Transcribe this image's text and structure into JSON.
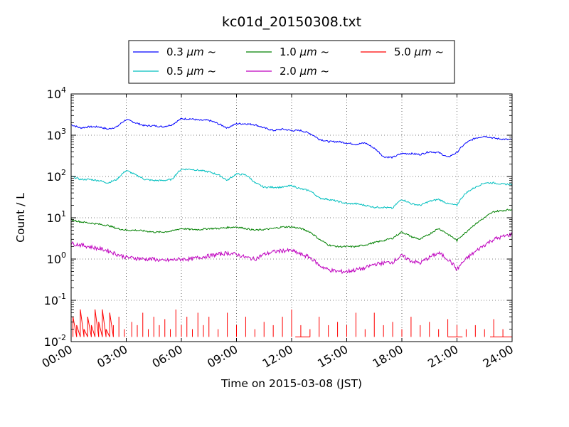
{
  "chart_data": {
    "type": "line",
    "title": "kc01d_20150308.txt",
    "xlabel": "Time on 2015-03-08 (JST)",
    "ylabel": "Count / L",
    "x_ticks": [
      "00:00",
      "03:00",
      "06:00",
      "09:00",
      "12:00",
      "15:00",
      "18:00",
      "21:00",
      "24:00"
    ],
    "xlim_hours": [
      0,
      24
    ],
    "y_scale": "log",
    "ylim": [
      0.01,
      10000
    ],
    "y_ticks": [
      {
        "base": "10",
        "exp": "-2"
      },
      {
        "base": "10",
        "exp": "-1"
      },
      {
        "base": "10",
        "exp": "0"
      },
      {
        "base": "10",
        "exp": "1"
      },
      {
        "base": "10",
        "exp": "2"
      },
      {
        "base": "10",
        "exp": "3"
      },
      {
        "base": "10",
        "exp": "4"
      }
    ],
    "grid": true,
    "legend_position": "top-center",
    "series": [
      {
        "name": "0.3 μm ~",
        "legend_size": "0.3",
        "legend_unit": "μm",
        "legend_suffix": "~",
        "color": "#0000ff",
        "x": [
          0,
          0.5,
          1,
          1.5,
          2,
          2.5,
          3,
          3.5,
          4,
          4.5,
          5,
          5.5,
          6,
          6.5,
          7,
          7.5,
          8,
          8.5,
          9,
          9.5,
          10,
          10.5,
          11,
          11.5,
          12,
          12.5,
          13,
          13.5,
          14,
          14.5,
          15,
          15.5,
          16,
          16.5,
          17,
          17.5,
          18,
          18.5,
          19,
          19.5,
          20,
          20.5,
          21,
          21.5,
          22,
          22.5,
          23,
          23.5,
          24
        ],
        "y": [
          1800,
          1500,
          1600,
          1600,
          1400,
          1600,
          2400,
          2000,
          1700,
          1700,
          1600,
          1800,
          2500,
          2500,
          2300,
          2300,
          1900,
          1500,
          1900,
          1900,
          1800,
          1500,
          1300,
          1400,
          1300,
          1300,
          1100,
          800,
          700,
          700,
          650,
          600,
          650,
          480,
          300,
          290,
          360,
          360,
          340,
          400,
          380,
          290,
          380,
          650,
          850,
          950,
          850,
          800,
          780
        ]
      },
      {
        "name": "0.5 μm ~",
        "legend_size": "0.5",
        "legend_unit": "μm",
        "legend_suffix": "~",
        "color": "#00bfbf",
        "x": [
          0,
          0.5,
          1,
          1.5,
          2,
          2.5,
          3,
          3.5,
          4,
          4.5,
          5,
          5.5,
          6,
          6.5,
          7,
          7.5,
          8,
          8.5,
          9,
          9.5,
          10,
          10.5,
          11,
          11.5,
          12,
          12.5,
          13,
          13.5,
          14,
          14.5,
          15,
          15.5,
          16,
          16.5,
          17,
          17.5,
          18,
          18.5,
          19,
          19.5,
          20,
          20.5,
          21,
          21.5,
          22,
          22.5,
          23,
          23.5,
          24
        ],
        "y": [
          100,
          85,
          85,
          80,
          70,
          85,
          140,
          110,
          85,
          80,
          80,
          85,
          150,
          150,
          140,
          130,
          110,
          80,
          115,
          110,
          70,
          55,
          55,
          55,
          60,
          50,
          45,
          30,
          28,
          25,
          22,
          22,
          20,
          18,
          18,
          17,
          28,
          22,
          20,
          25,
          28,
          22,
          20,
          40,
          55,
          70,
          70,
          65,
          65
        ]
      },
      {
        "name": "1.0 μm ~",
        "legend_size": "1.0",
        "legend_unit": "μm",
        "legend_suffix": "~",
        "color": "#008000",
        "x": [
          0,
          0.5,
          1,
          1.5,
          2,
          2.5,
          3,
          3.5,
          4,
          4.5,
          5,
          5.5,
          6,
          6.5,
          7,
          7.5,
          8,
          8.5,
          9,
          9.5,
          10,
          10.5,
          11,
          11.5,
          12,
          12.5,
          13,
          13.5,
          14,
          14.5,
          15,
          15.5,
          16,
          16.5,
          17,
          17.5,
          18,
          18.5,
          19,
          19.5,
          20,
          20.5,
          21,
          21.5,
          22,
          22.5,
          23,
          23.5,
          24
        ],
        "y": [
          9,
          8,
          7.5,
          7,
          6.5,
          5.5,
          5,
          5,
          4.8,
          4.5,
          4.5,
          4.8,
          5.5,
          5.2,
          5.2,
          5.5,
          5.5,
          5.8,
          6,
          5.5,
          5,
          5.2,
          5.5,
          6,
          6,
          5.5,
          4.5,
          3,
          2.2,
          2,
          2,
          2,
          2.2,
          2.5,
          2.8,
          3.2,
          4.5,
          3.5,
          3,
          4,
          5.5,
          4,
          2.8,
          4.5,
          7,
          10,
          14,
          15,
          16
        ]
      },
      {
        "name": "2.0 μm ~",
        "legend_size": "2.0",
        "legend_unit": "μm",
        "legend_suffix": "~",
        "color": "#bf00bf",
        "x": [
          0,
          0.5,
          1,
          1.5,
          2,
          2.5,
          3,
          3.5,
          4,
          4.5,
          5,
          5.5,
          6,
          6.5,
          7,
          7.5,
          8,
          8.5,
          9,
          9.5,
          10,
          10.5,
          11,
          11.5,
          12,
          12.5,
          13,
          13.5,
          14,
          14.5,
          15,
          15.5,
          16,
          16.5,
          17,
          17.5,
          18,
          18.5,
          19,
          19.5,
          20,
          20.5,
          21,
          21.5,
          22,
          22.5,
          23,
          23.5,
          24
        ],
        "y": [
          2.4,
          2.2,
          2,
          1.8,
          1.6,
          1.3,
          1.1,
          1.05,
          1,
          1,
          0.9,
          0.95,
          1,
          1,
          1.1,
          1.2,
          1.3,
          1.4,
          1.3,
          1.1,
          1,
          1.3,
          1.5,
          1.6,
          1.6,
          1.3,
          1.1,
          0.7,
          0.55,
          0.5,
          0.5,
          0.55,
          0.6,
          0.75,
          0.8,
          0.85,
          1.2,
          0.9,
          0.8,
          1.1,
          1.4,
          1,
          0.55,
          1,
          1.5,
          2.2,
          3,
          3.5,
          4
        ]
      },
      {
        "name": "5.0 μm ~",
        "legend_size": "5.0",
        "legend_unit": "μm",
        "legend_suffix": "~",
        "color": "#ff0000",
        "x": [
          0.1,
          0.3,
          0.5,
          0.7,
          0.9,
          1.1,
          1.3,
          1.5,
          1.7,
          1.9,
          2.1,
          2.3,
          2.6,
          2.9,
          3.3,
          3.6,
          3.9,
          4.2,
          4.5,
          4.8,
          5.1,
          5.4,
          5.7,
          6.0,
          6.3,
          6.6,
          6.9,
          7.2,
          7.5,
          8.0,
          8.5,
          9.0,
          9.5,
          10.0,
          10.5,
          11.0,
          11.5,
          12.0,
          12.5,
          13.0,
          13.5,
          14.0,
          14.5,
          15.0,
          15.5,
          16.0,
          16.5,
          17.0,
          17.5,
          18.0,
          18.5,
          19.0,
          19.5,
          20.0,
          20.5,
          21.0,
          21.5,
          22.0,
          22.5,
          23.0,
          23.5,
          24.0
        ],
        "y": [
          0.04,
          0.025,
          0.06,
          0.02,
          0.04,
          0.025,
          0.06,
          0.03,
          0.06,
          0.02,
          0.05,
          0.025,
          0.04,
          0.02,
          0.03,
          0.025,
          0.05,
          0.02,
          0.04,
          0.025,
          0.035,
          0.02,
          0.06,
          0.025,
          0.04,
          0.02,
          0.05,
          0.025,
          0.04,
          0.02,
          0.05,
          0.025,
          0.04,
          0.02,
          0.03,
          0.025,
          0.04,
          0.06,
          0.025,
          0.02,
          0.04,
          0.025,
          0.03,
          0.025,
          0.05,
          0.02,
          0.05,
          0.025,
          0.03,
          0.02,
          0.04,
          0.025,
          0.03,
          0.02,
          0.035,
          0.025,
          0.02,
          0.025,
          0.02,
          0.035,
          0.02,
          0.02
        ]
      }
    ]
  }
}
